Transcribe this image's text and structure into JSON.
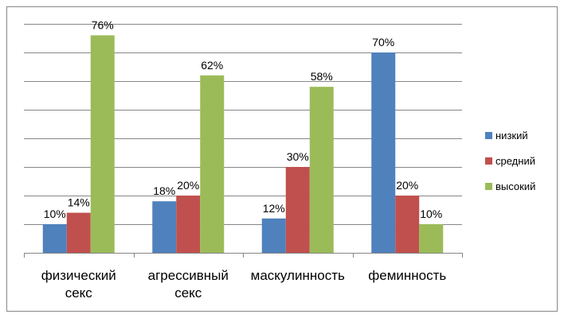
{
  "chart_data": {
    "type": "bar",
    "title": "",
    "xlabel": "",
    "ylabel": "",
    "ylim": [
      0,
      80
    ],
    "grid": true,
    "legend_position": "right",
    "categories": [
      [
        "физический",
        "секс"
      ],
      [
        "агрессивный",
        "секс"
      ],
      [
        "маскулинность"
      ],
      [
        "феминность"
      ]
    ],
    "series": [
      {
        "name": "низкий",
        "color": "#4F81BD",
        "values": [
          10,
          18,
          12,
          70
        ],
        "labels": [
          "10%",
          "18%",
          "12%",
          "70%"
        ]
      },
      {
        "name": "средний",
        "color": "#C0504D",
        "values": [
          14,
          20,
          30,
          20
        ],
        "labels": [
          "14%",
          "20%",
          "30%",
          "20%"
        ]
      },
      {
        "name": "высокий",
        "color": "#9BBB59",
        "values": [
          76,
          62,
          58,
          10
        ],
        "labels": [
          "76%",
          "62%",
          "58%",
          "10%"
        ]
      }
    ]
  }
}
